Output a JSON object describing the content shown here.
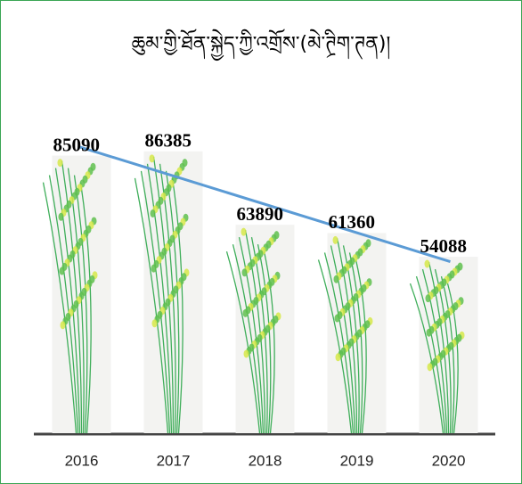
{
  "chart_data": {
    "type": "bar",
    "title": "ཆུམ་གྱི་ཐོན་སྐྱེད་ཀྱི་འགྲོས་(མེ་ཊྲིག་ཊན)།",
    "categories": [
      "2016",
      "2017",
      "2018",
      "2019",
      "2020"
    ],
    "values": [
      85090,
      86385,
      63890,
      61360,
      54088
    ],
    "color": "#5fbf4f",
    "trendline_color": "#5b9bd5",
    "ylim": [
      0,
      100000
    ]
  }
}
